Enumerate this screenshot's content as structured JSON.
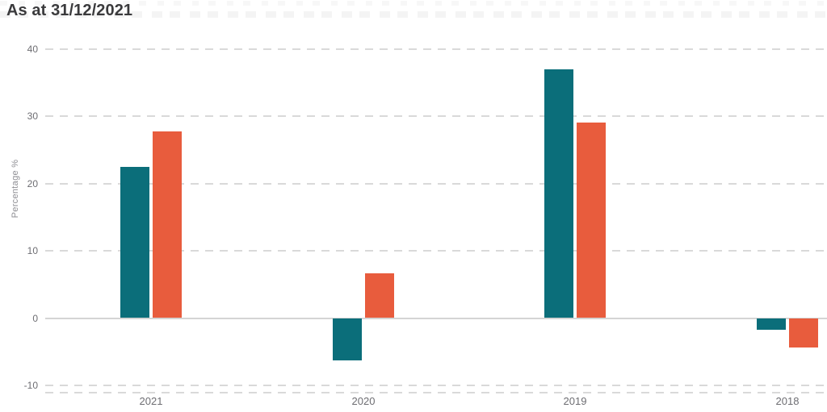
{
  "chart_data": {
    "type": "bar",
    "title": "As at 31/12/2021",
    "ylabel": "Percentage %",
    "xlabel": "",
    "categories": [
      "2021",
      "2020",
      "2019",
      "2018"
    ],
    "series": [
      {
        "name": "teal",
        "color": "#0B6E7A",
        "values": [
          22.4,
          -6.3,
          37.0,
          -1.7
        ]
      },
      {
        "name": "orange",
        "color": "#E85C3D",
        "values": [
          27.7,
          6.7,
          29.0,
          -4.4
        ]
      }
    ],
    "y_ticks": [
      40,
      30,
      20,
      10,
      0,
      -10
    ],
    "ylim": [
      -11,
      40
    ],
    "grid": "horizontal-dashed",
    "legend_position": "none",
    "zero_line": true,
    "colors": {
      "grid_line": "#D9D9D9",
      "zero_line": "#D4D4D4",
      "tick_label": "#6D6D72",
      "axis_title": "#8E8E93",
      "title_text": "#3A3A3C"
    }
  }
}
